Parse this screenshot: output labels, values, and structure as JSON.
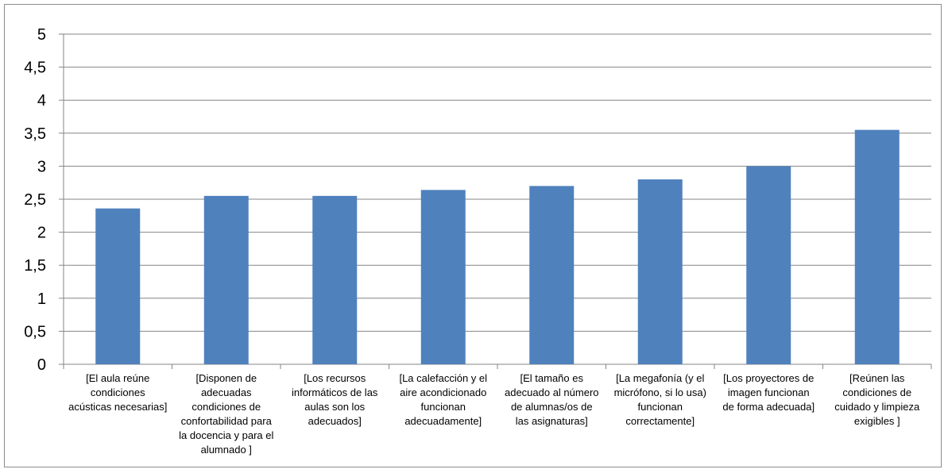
{
  "chart_data": {
    "type": "bar",
    "title": "",
    "xlabel": "",
    "ylabel": "",
    "ylim": [
      0,
      5
    ],
    "y_ticks": [
      "0",
      "0,5",
      "1",
      "1,5",
      "2",
      "2,5",
      "3",
      "3,5",
      "4",
      "4,5",
      "5"
    ],
    "grid": "horizontal",
    "legend": "none",
    "bar_color": "#4f81bd",
    "categories": [
      [
        "[El aula reúne",
        "condiciones",
        "acústicas necesarias]"
      ],
      [
        "[Disponen de",
        "adecuadas",
        "condiciones de",
        "confortabilidad para",
        "la docencia y para el",
        "alumnado ]"
      ],
      [
        "[Los recursos",
        "informáticos de las",
        "aulas son los",
        "adecuados]"
      ],
      [
        "[La calefacción y el",
        "aire acondicionado",
        "funcionan",
        "adecuadamente]"
      ],
      [
        "[El tamaño es",
        "adecuado al número",
        "de alumnas/os de",
        "las asignaturas]"
      ],
      [
        "[La megafonía (y el",
        "micrófono, si lo usa)",
        "funcionan",
        "correctamente]"
      ],
      [
        "[Los proyectores de",
        "imagen funcionan",
        "de forma adecuada]"
      ],
      [
        "[Reúnen las",
        "condiciones de",
        "cuidado y limpieza",
        "exigibles ]"
      ]
    ],
    "values": [
      2.36,
      2.55,
      2.55,
      2.64,
      2.7,
      2.8,
      3.0,
      3.55
    ]
  }
}
